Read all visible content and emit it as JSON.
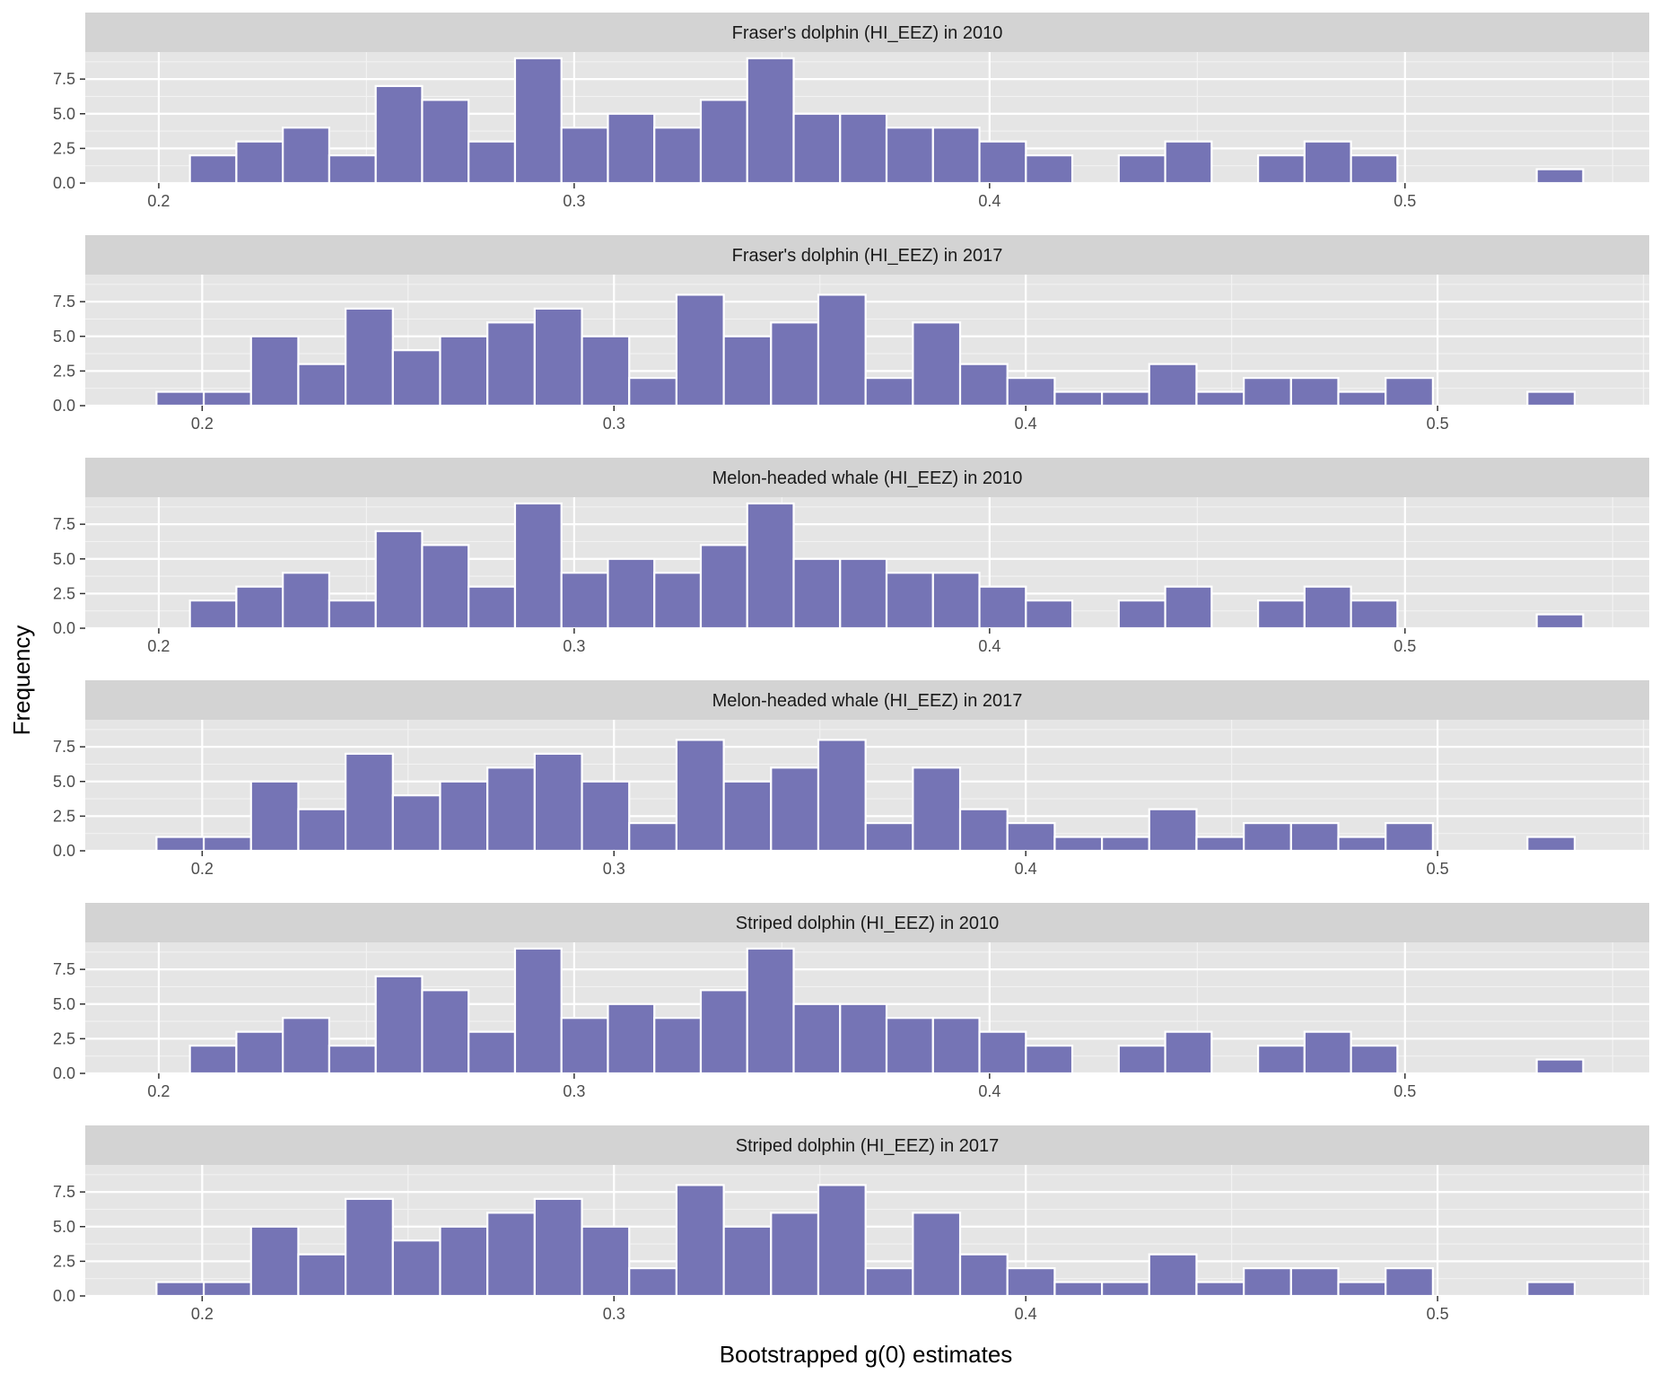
{
  "chart_data": {
    "type": "bar",
    "xlabel": "Bootstrapped g(0) estimates",
    "ylabel": "Frequency",
    "bar_fill": "#7574b5",
    "bar_outline": "#ffffff",
    "panel_background": "#e5e5e5",
    "strip_background": "#d3d3d3",
    "grid": true,
    "y_ticks": [
      "0.0",
      "2.5",
      "5.0",
      "7.5"
    ],
    "ylim": [
      0,
      9.45
    ],
    "panels": [
      {
        "title": "Fraser's dolphin (HI_EEZ) in 2010",
        "xlim": [
          0.1823,
          0.5588
        ],
        "x_ticks": [
          "0.2",
          "0.3",
          "0.4",
          "0.5"
        ],
        "x_tick_values": [
          0.2,
          0.3,
          0.4,
          0.5
        ],
        "bin_start": 0.2075,
        "bin_width": 0.01118,
        "counts": [
          2,
          3,
          4,
          2,
          7,
          6,
          3,
          9,
          4,
          5,
          4,
          6,
          9,
          5,
          5,
          4,
          4,
          3,
          2,
          0,
          2,
          3,
          0,
          2,
          3,
          2,
          0,
          0,
          0,
          1
        ]
      },
      {
        "title": "Fraser's dolphin (HI_EEZ) in 2017",
        "xlim": [
          0.1716,
          0.5514
        ],
        "x_ticks": [
          "0.2",
          "0.3",
          "0.4",
          "0.5"
        ],
        "x_tick_values": [
          0.2,
          0.3,
          0.4,
          0.5
        ],
        "bin_start": 0.1889,
        "bin_width": 0.01148,
        "counts": [
          1,
          1,
          5,
          3,
          7,
          4,
          5,
          6,
          7,
          5,
          2,
          8,
          5,
          6,
          8,
          2,
          6,
          3,
          2,
          1,
          1,
          3,
          1,
          2,
          2,
          1,
          2,
          0,
          0,
          1
        ]
      },
      {
        "title": "Melon-headed whale (HI_EEZ) in 2010",
        "xlim": [
          0.1823,
          0.5588
        ],
        "x_ticks": [
          "0.2",
          "0.3",
          "0.4",
          "0.5"
        ],
        "x_tick_values": [
          0.2,
          0.3,
          0.4,
          0.5
        ],
        "bin_start": 0.2075,
        "bin_width": 0.01118,
        "counts": [
          2,
          3,
          4,
          2,
          7,
          6,
          3,
          9,
          4,
          5,
          4,
          6,
          9,
          5,
          5,
          4,
          4,
          3,
          2,
          0,
          2,
          3,
          0,
          2,
          3,
          2,
          0,
          0,
          0,
          1
        ]
      },
      {
        "title": "Melon-headed whale (HI_EEZ) in 2017",
        "xlim": [
          0.1716,
          0.5514
        ],
        "x_ticks": [
          "0.2",
          "0.3",
          "0.4",
          "0.5"
        ],
        "x_tick_values": [
          0.2,
          0.3,
          0.4,
          0.5
        ],
        "bin_start": 0.1889,
        "bin_width": 0.01148,
        "counts": [
          1,
          1,
          5,
          3,
          7,
          4,
          5,
          6,
          7,
          5,
          2,
          8,
          5,
          6,
          8,
          2,
          6,
          3,
          2,
          1,
          1,
          3,
          1,
          2,
          2,
          1,
          2,
          0,
          0,
          1
        ]
      },
      {
        "title": "Striped dolphin (HI_EEZ) in 2010",
        "xlim": [
          0.1823,
          0.5588
        ],
        "x_ticks": [
          "0.2",
          "0.3",
          "0.4",
          "0.5"
        ],
        "x_tick_values": [
          0.2,
          0.3,
          0.4,
          0.5
        ],
        "bin_start": 0.2075,
        "bin_width": 0.01118,
        "counts": [
          2,
          3,
          4,
          2,
          7,
          6,
          3,
          9,
          4,
          5,
          4,
          6,
          9,
          5,
          5,
          4,
          4,
          3,
          2,
          0,
          2,
          3,
          0,
          2,
          3,
          2,
          0,
          0,
          0,
          1
        ]
      },
      {
        "title": "Striped dolphin (HI_EEZ) in 2017",
        "xlim": [
          0.1716,
          0.5514
        ],
        "x_ticks": [
          "0.2",
          "0.3",
          "0.4",
          "0.5"
        ],
        "x_tick_values": [
          0.2,
          0.3,
          0.4,
          0.5
        ],
        "bin_start": 0.1889,
        "bin_width": 0.01148,
        "counts": [
          1,
          1,
          5,
          3,
          7,
          4,
          5,
          6,
          7,
          5,
          2,
          8,
          5,
          6,
          8,
          2,
          6,
          3,
          2,
          1,
          1,
          3,
          1,
          2,
          2,
          1,
          2,
          0,
          0,
          1
        ]
      }
    ]
  }
}
